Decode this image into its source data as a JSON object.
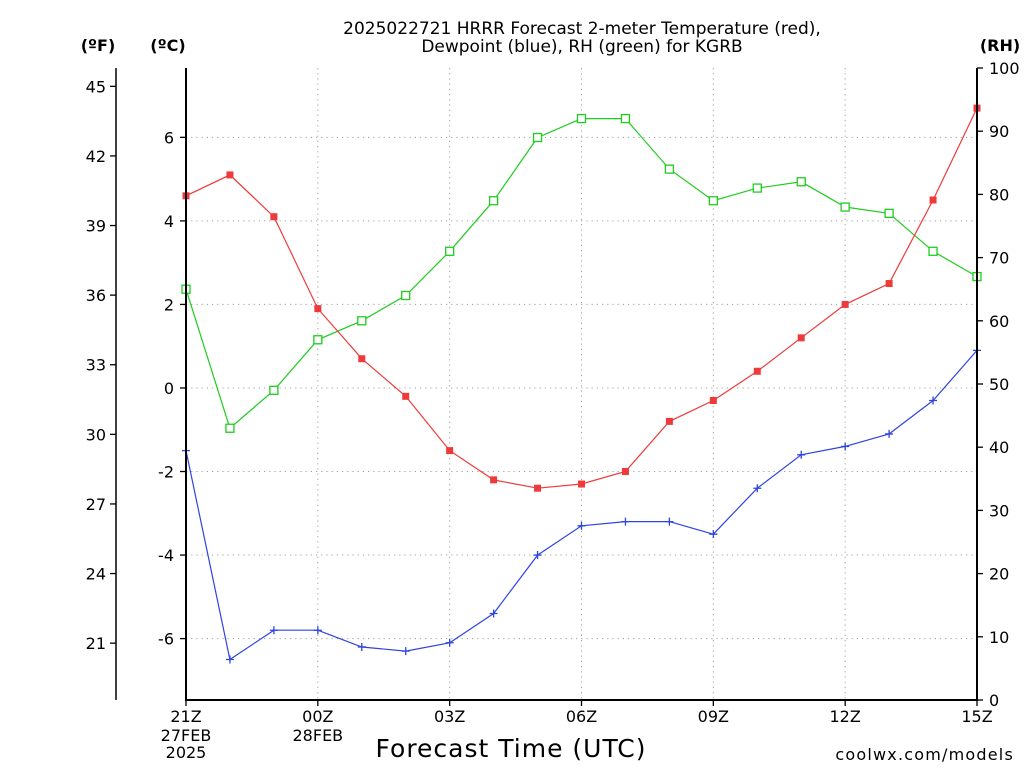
{
  "chart_data": {
    "type": "line",
    "title": [
      "2025022721 HRRR Forecast 2-meter Temperature (red),",
      "Dewpoint (blue), RH (green) for KGRB"
    ],
    "xlabel": "Forecast Time (UTC)",
    "x": [
      21,
      22,
      23,
      0,
      1,
      2,
      3,
      4,
      5,
      6,
      7,
      8,
      9,
      10,
      11,
      12,
      13,
      14,
      15
    ],
    "x_ticks": [
      {
        "label": "21Z",
        "date": "27FEB",
        "year": "2025"
      },
      {
        "label": "00Z",
        "date": "28FEB"
      },
      {
        "label": "03Z"
      },
      {
        "label": "06Z"
      },
      {
        "label": "09Z"
      },
      {
        "label": "12Z"
      },
      {
        "label": "15Z"
      }
    ],
    "y_axes": [
      {
        "label": "(ºF)",
        "ticks": [
          45,
          42,
          39,
          36,
          33,
          30,
          27,
          24,
          21
        ],
        "ylim": [
          18.55,
          45.79
        ]
      },
      {
        "label": "(ºC)",
        "ticks": [
          6,
          4,
          2,
          0,
          -2,
          -4,
          -6
        ],
        "ylim": [
          -7.47,
          7.66
        ]
      },
      {
        "label": "(RH)",
        "ticks": [
          100,
          90,
          80,
          70,
          60,
          50,
          40,
          30,
          20,
          10,
          0
        ],
        "ylim": [
          0,
          100
        ]
      }
    ],
    "series": [
      {
        "color": "#ee3a3a",
        "y_axis": 1,
        "values": [
          4.6,
          5.1,
          4.1,
          1.9,
          0.7,
          -0.2,
          -1.5,
          -2.2,
          -2.4,
          -2.3,
          -2.0,
          -0.8,
          -0.3,
          0.4,
          1.2,
          2.0,
          2.5,
          4.5,
          6.7
        ]
      },
      {
        "color": "#2e44e0",
        "y_axis": 1,
        "values": [
          -1.5,
          -6.5,
          -5.8,
          -5.8,
          -6.2,
          -6.3,
          -6.1,
          -5.4,
          -4.0,
          -3.3,
          -3.2,
          -3.2,
          -3.5,
          -2.4,
          -1.6,
          -1.4,
          -1.1,
          -0.3,
          0.9
        ]
      },
      {
        "color": "#1fcc1f",
        "y_axis": 2,
        "values": [
          65,
          43,
          49,
          57,
          60,
          64,
          71,
          79,
          89,
          92,
          92,
          84,
          79,
          81,
          82,
          78,
          77,
          71,
          67
        ]
      }
    ],
    "grid": true
  },
  "credit": {
    "text": "coolwx.com/models",
    "color": "#e8444c"
  }
}
